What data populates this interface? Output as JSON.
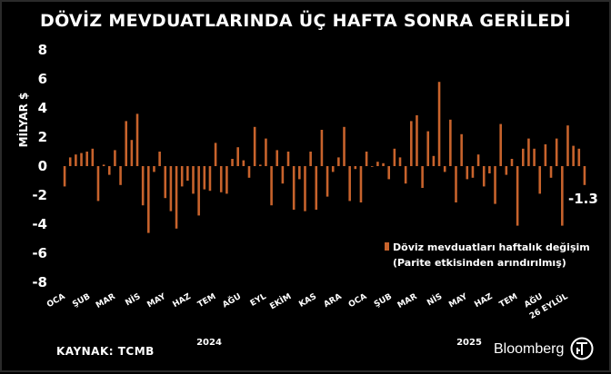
{
  "title": "DÖVİZ MEVDUATLARINDA ÜÇ HAFTA SONRA GERİLEDİ",
  "source": "KAYNAK: TCMB",
  "brand": "Bloomberg",
  "logo_name": "bloomberg-ht-logo",
  "colors": {
    "bar": "#c8632c",
    "background": "#000000",
    "text": "#ffffff"
  },
  "chart_data": {
    "type": "bar",
    "title": "DÖVİZ MEVDUATLARINDA ÜÇ HAFTA SONRA GERİLEDİ",
    "ylabel": "MİLYAR $",
    "xlabel": "",
    "ylim": [
      -8,
      8
    ],
    "yticks": [
      8,
      6,
      4,
      2,
      0,
      -2,
      -4,
      -6,
      -8
    ],
    "legend": {
      "label_line1": "Döviz mevduatları haftalık değişim",
      "label_line2": "(Parite etkisinden arındırılmış)",
      "position": "lower-right"
    },
    "month_labels": [
      "OCA",
      "ŞUB",
      "MAR",
      "NİS",
      "MAY",
      "HAZ",
      "TEM",
      "AĞU",
      "EYL",
      "EKİM",
      "KAS",
      "ARA",
      "OCA",
      "ŞUB",
      "MAR",
      "NİS",
      "MAY",
      "HAZ",
      "TEM",
      "AĞU",
      "26 EYLÜL"
    ],
    "year_labels": [
      "2024",
      "2025"
    ],
    "annotation": "-1.3",
    "series": [
      {
        "name": "Döviz mevduatları haftalık değişim",
        "values": [
          -1.4,
          0.6,
          0.8,
          0.9,
          1.0,
          1.2,
          -2.4,
          0.1,
          -0.6,
          1.1,
          -1.3,
          3.1,
          1.8,
          3.6,
          -2.7,
          -4.6,
          -0.4,
          1.0,
          -2.2,
          -3.1,
          -4.3,
          -1.4,
          -1.0,
          -1.9,
          -3.4,
          -1.6,
          -1.7,
          1.6,
          -1.8,
          -1.9,
          0.5,
          1.3,
          0.4,
          -0.8,
          2.7,
          0.1,
          1.9,
          -2.7,
          1.1,
          -1.2,
          1.0,
          -3.0,
          -0.9,
          -3.1,
          1.0,
          -3.0,
          2.5,
          -2.1,
          -0.4,
          0.6,
          2.7,
          -2.4,
          -0.2,
          -2.5,
          1.0,
          0.0,
          0.3,
          0.2,
          -0.9,
          1.2,
          0.6,
          -1.2,
          3.1,
          3.5,
          -1.5,
          2.4,
          0.7,
          5.8,
          -0.4,
          3.2,
          -2.5,
          2.2,
          -0.9,
          -0.8,
          0.8,
          -1.4,
          -0.5,
          -2.6,
          2.9,
          -0.6,
          0.5,
          -4.1,
          1.2,
          1.9,
          1.2,
          -1.9,
          1.5,
          -0.8,
          1.9,
          -4.1,
          2.8,
          1.4,
          1.2,
          -1.3
        ]
      }
    ]
  }
}
